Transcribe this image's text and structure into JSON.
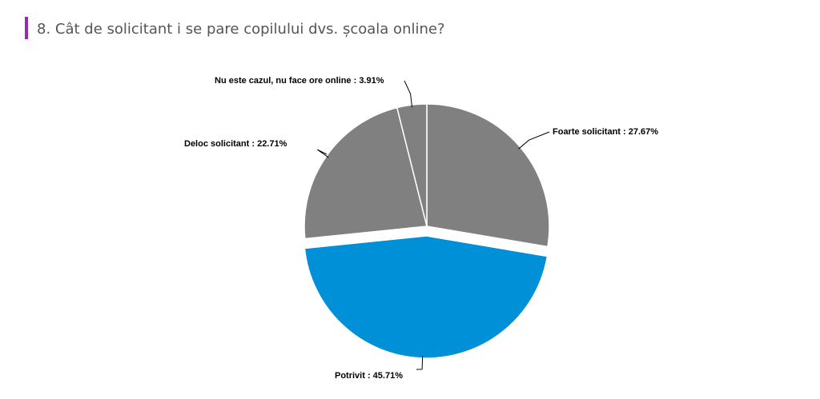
{
  "chart_data": {
    "type": "pie",
    "title": "8. Cât de solicitant i se pare copilului dvs. școala online?",
    "values": [
      27.67,
      45.71,
      22.71,
      3.91
    ],
    "value_labels": [
      "Foarte solicitant : 27.67%",
      "Potrivit : 45.71%",
      "Deloc solicitant : 22.71%",
      "Nu este cazul, nu face ore online : 3.91%"
    ],
    "colors": [
      "#808080",
      "#0090d8",
      "#808080",
      "#808080"
    ],
    "explode": [
      false,
      true,
      false,
      false
    ]
  }
}
